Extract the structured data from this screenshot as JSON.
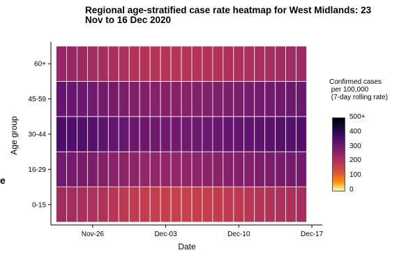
{
  "chart_data": {
    "type": "heatmap",
    "title": "Regional age-stratified case rate heatmap for West Midlands: 23\nNov to 16 Dec 2020",
    "xlabel": "Date",
    "ylabel": "Age group",
    "x": [
      "2020-11-23",
      "2020-11-24",
      "2020-11-25",
      "2020-11-26",
      "2020-11-27",
      "2020-11-28",
      "2020-11-29",
      "2020-11-30",
      "2020-12-01",
      "2020-12-02",
      "2020-12-03",
      "2020-12-04",
      "2020-12-05",
      "2020-12-06",
      "2020-12-07",
      "2020-12-08",
      "2020-12-09",
      "2020-12-10",
      "2020-12-11",
      "2020-12-12",
      "2020-12-13",
      "2020-12-14",
      "2020-12-15",
      "2020-12-16"
    ],
    "x_ticks": [
      {
        "date": "2020-11-26",
        "label": "Nov-26"
      },
      {
        "date": "2020-12-03",
        "label": "Dec-03"
      },
      {
        "date": "2020-12-10",
        "label": "Dec-10"
      },
      {
        "date": "2020-12-17",
        "label": "Dec-17"
      }
    ],
    "x_range": [
      "2020-11-22",
      "2020-12-18"
    ],
    "categories": [
      "0-15",
      "16-29",
      "30-44",
      "45-59",
      "60+"
    ],
    "series": [
      {
        "name": "0-15",
        "values": [
          228,
          224,
          218,
          210,
          202,
          194,
          186,
          180,
          176,
          172,
          170,
          168,
          168,
          170,
          172,
          176,
          180,
          186,
          192,
          198,
          204,
          210,
          214,
          218
        ]
      },
      {
        "name": "16-29",
        "values": [
          300,
          295,
          290,
          282,
          274,
          266,
          260,
          256,
          252,
          250,
          250,
          252,
          254,
          258,
          262,
          266,
          270,
          274,
          278,
          282,
          286,
          290,
          294,
          296
        ]
      },
      {
        "name": "30-44",
        "values": [
          360,
          355,
          348,
          340,
          332,
          324,
          318,
          312,
          308,
          305,
          304,
          304,
          306,
          308,
          312,
          316,
          320,
          324,
          328,
          334,
          338,
          342,
          346,
          348
        ]
      },
      {
        "name": "45-59",
        "values": [
          320,
          315,
          310,
          303,
          296,
          289,
          283,
          278,
          274,
          271,
          270,
          270,
          272,
          274,
          278,
          281,
          284,
          288,
          292,
          296,
          300,
          304,
          308,
          310
        ]
      },
      {
        "name": "60+",
        "values": [
          246,
          242,
          236,
          229,
          222,
          216,
          210,
          205,
          201,
          198,
          197,
          197,
          198,
          200,
          203,
          206,
          209,
          212,
          216,
          220,
          224,
          228,
          231,
          234
        ]
      }
    ],
    "legend": {
      "title": "Confirmed cases\n per 100,000\n (7-day rolling rate)",
      "ticks": [
        0,
        100,
        200,
        300,
        400,
        500
      ],
      "tick_labels": [
        "0",
        "100",
        "200",
        "300",
        "400",
        "500+"
      ],
      "range": [
        0,
        500
      ],
      "placement": "right"
    },
    "colors": [
      "#fcffa4",
      "#f98c0a",
      "#dd513a",
      "#bc3754",
      "#932667",
      "#6a176e",
      "#420a68",
      "#140b34",
      "#000004"
    ],
    "grid": true
  },
  "stray_text": "e"
}
